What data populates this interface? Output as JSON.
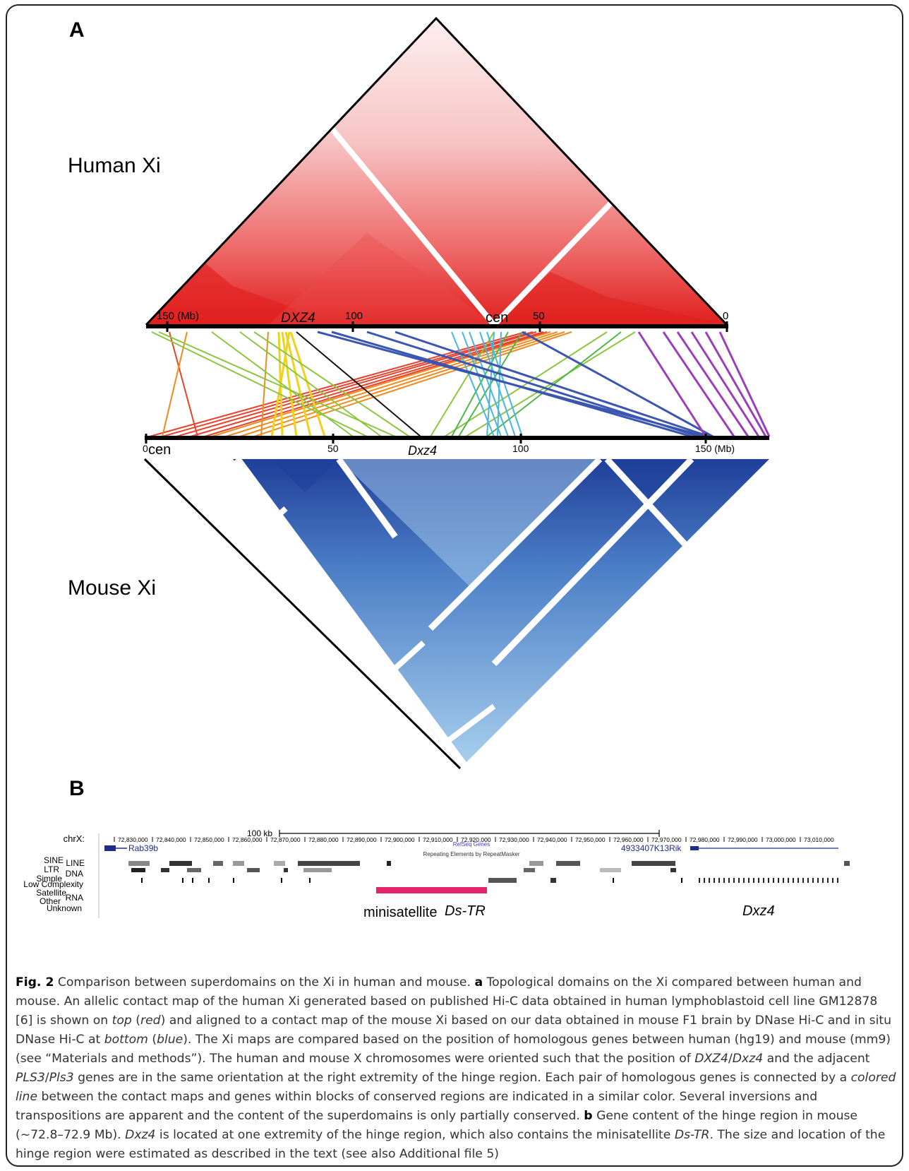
{
  "panels": {
    "a": "A",
    "b": "B"
  },
  "species": {
    "human": "Human Xi",
    "mouse": "Mouse Xi"
  },
  "human_axis": {
    "ticks": [
      "150 (Mb)",
      "100",
      "50",
      "0"
    ],
    "cen": "cen",
    "gene": "DXZ4"
  },
  "mouse_axis": {
    "ticks": [
      "0",
      "50",
      "100",
      "150 (Mb)"
    ],
    "cen": "cen",
    "gene": "Dxz4"
  },
  "colors": {
    "human_map": "#e0201e",
    "mouse_map": "#1f3f99",
    "mouse_map_light": "#9cc7ea",
    "gene_track": "#1f2d8a",
    "minisatellite": "#e2246a"
  },
  "browser": {
    "chrom_label": "chrX:",
    "scale_label": "100 kb",
    "coords": [
      "72,830,000",
      "72,840,000",
      "72,850,000",
      "72,860,000",
      "72,870,000",
      "72,880,000",
      "72,890,000",
      "72,900,000",
      "72,910,000",
      "72,920,000",
      "72,930,000",
      "72,940,000",
      "72,950,000",
      "72,960,000",
      "72,970,000",
      "72,980,000",
      "72,990,000",
      "73,000,000",
      "73,010,000"
    ],
    "track_genes": "RefSeq Genes",
    "track_repeats": "Repeating Elements by RepeatMasker",
    "gene_left": "Rab39b",
    "gene_right": "4933407K13Rik",
    "repeat_classes": [
      "SINE",
      "LINE",
      "LTR",
      "DNA",
      "Simple",
      "Low Complexity",
      "Satellite",
      "RNA",
      "Other",
      "Unknown"
    ],
    "label_minisat": "minisatellite",
    "label_dstr": "Ds-TR",
    "label_dxz4": "Dxz4"
  },
  "caption": {
    "fig": "Fig. 2",
    "t1": " Comparison between superdomains on the Xi in human and mouse. ",
    "a": "a",
    "t2": " Topological domains on the Xi compared between human and mouse. An allelic contact map of the human Xi generated based on published Hi-C data obtained in human lymphoblastoid cell line GM12878 [6] is shown on ",
    "top": "top",
    "t3": " (",
    "red": "red",
    "t4": ") and aligned to a contact map of the mouse Xi based on our data obtained in mouse F1 brain by DNase Hi-C and in situ DNase Hi-C at ",
    "bottom": "bottom",
    "t5": " (",
    "blue": "blue",
    "t6": "). The Xi maps are compared based on the position of homologous genes between human (hg19) and mouse (mm9) (see “Materials and methods”). The human and mouse X chromosomes were oriented such that the position of ",
    "dxz4h": "DXZ4",
    "sl1": "/",
    "dxz4m": "Dxz4",
    "t7": " and the adjacent ",
    "pls3h": "PLS3",
    "sl2": "/",
    "pls3m": "Pls3",
    "t8": " genes are in the same orientation at the right extremity of the hinge region. Each pair of homologous genes is connected by a ",
    "colored": "colored",
    "sp": " ",
    "line": "line",
    "t9": " between the contact maps and genes within blocks of conserved regions are indicated in a similar color. Several inversions and transpositions are apparent and the content of the superdomains is only partially conserved. ",
    "b": "b",
    "t10": " Gene content of the hinge region in mouse (~72.8–72.9 Mb). ",
    "dxz4m2": "Dxz4",
    "t11": " is located at one extremity of the hinge region, which also contains the minisatellite ",
    "dstr": "Ds-TR",
    "t12": ". The size and location of the hinge region were estimated as described in the text (see also Additional file 5)"
  }
}
